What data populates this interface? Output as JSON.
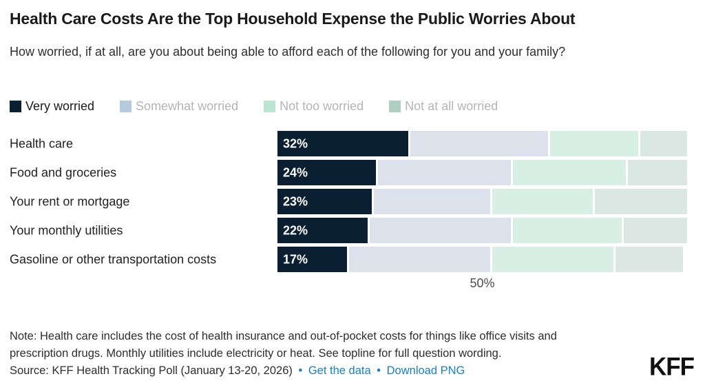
{
  "header": {
    "title": "Health Care Costs Are the Top Household Expense the Public Worries About",
    "subtitle": "How worried, if at all, are you about being able to afford each of the following for you and your family?"
  },
  "chart_data": {
    "type": "bar",
    "orientation": "horizontal",
    "stacked": true,
    "grid": false,
    "legend_position": "top",
    "xlim": [
      0,
      100
    ],
    "x_tick": {
      "value": 50,
      "label": "50%"
    },
    "categories": [
      "Health care",
      "Food and groceries",
      "Your rent or mortgage",
      "Your monthly utilities",
      "Gasoline or other transportation costs"
    ],
    "series": [
      {
        "name": "Very worried",
        "color": "#0a1f31",
        "legend_color": "#0a1f31",
        "legend_text_color": "#1a1a1a",
        "values": [
          32,
          24,
          23,
          22,
          17
        ]
      },
      {
        "name": "Somewhat worried",
        "color": "#dbe2ec",
        "legend_color": "#b5c9df",
        "legend_text_color": "#b4b4b4",
        "values": [
          34,
          33,
          29,
          35,
          35
        ]
      },
      {
        "name": "Not too worried",
        "color": "#d7efe4",
        "legend_color": "#b9e5d1",
        "legend_text_color": "#b4b4b4",
        "values": [
          22,
          28,
          25,
          27,
          30
        ]
      },
      {
        "name": "Not at all worried",
        "color": "#dae7e2",
        "legend_color": "#aecfc2",
        "legend_text_color": "#b4b4b4",
        "values": [
          12,
          15,
          23,
          16,
          17
        ]
      }
    ],
    "bar_labels": [
      "32%",
      "24%",
      "23%",
      "22%",
      "17%"
    ]
  },
  "footer": {
    "note": "Note: Health care includes the cost of health insurance and out-of-pocket costs for things like office visits and prescription drugs. Monthly utilities include electricity or heat. See topline for full question wording.",
    "source_prefix": "Source: KFF Health Tracking Poll (January 13-20, 2026)",
    "separator": "•",
    "links": [
      "Get the data",
      "Download PNG"
    ],
    "link_color": "#1581c9",
    "logo": "KFF"
  }
}
